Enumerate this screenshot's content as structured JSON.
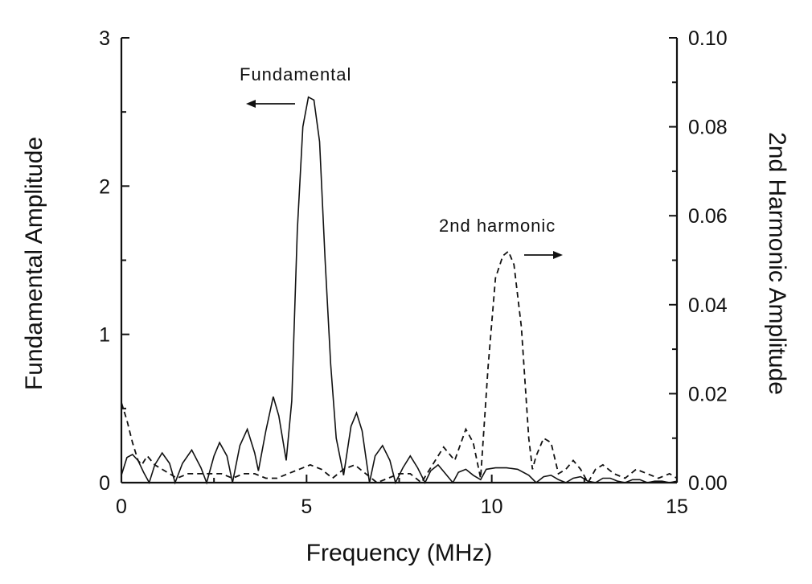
{
  "chart_data": {
    "type": "line",
    "title": "",
    "xlabel": "Frequency (MHz)",
    "ylabel_left": "Fundamental Amplitude",
    "ylabel_right": "2nd Harmonic Amplitude",
    "xlim": [
      0,
      15
    ],
    "ylim_left": [
      0,
      3
    ],
    "ylim_right": [
      0,
      0.1
    ],
    "x_ticks": [
      "0",
      "5",
      "10",
      "15"
    ],
    "y_left_ticks": [
      "0",
      "1",
      "2",
      "3"
    ],
    "y_right_ticks": [
      "0.00",
      "0.02",
      "0.04",
      "0.06",
      "0.08",
      "0.10"
    ],
    "grid": false,
    "annotations": [
      {
        "text": "Fundamental",
        "points_to": "left-axis"
      },
      {
        "text": "2nd harmonic",
        "points_to": "right-axis"
      }
    ],
    "series": [
      {
        "axis": "left",
        "style": "solid",
        "x": [
          0.0,
          0.15,
          0.3,
          0.45,
          0.6,
          0.75,
          0.9,
          1.1,
          1.3,
          1.45,
          1.65,
          1.9,
          2.15,
          2.3,
          2.5,
          2.65,
          2.85,
          3.0,
          3.2,
          3.4,
          3.6,
          3.7,
          3.9,
          4.1,
          4.25,
          4.45,
          4.6,
          4.75,
          4.9,
          5.05,
          5.2,
          5.35,
          5.5,
          5.65,
          5.8,
          6.0,
          6.2,
          6.35,
          6.5,
          6.7,
          6.85,
          7.05,
          7.25,
          7.4,
          7.6,
          7.8,
          8.0,
          8.2,
          8.35,
          8.55,
          8.75,
          8.95,
          9.1,
          9.3,
          9.5,
          9.7,
          9.85,
          10.1,
          10.4,
          10.7,
          11.0,
          11.2,
          11.4,
          11.6,
          11.8,
          12.0,
          12.2,
          12.4,
          12.6,
          12.8,
          13.0,
          13.2,
          13.4,
          13.6,
          13.8,
          14.0,
          14.2,
          14.4,
          14.6,
          14.8,
          15.0
        ],
        "y": [
          0.05,
          0.17,
          0.19,
          0.15,
          0.07,
          0.0,
          0.12,
          0.2,
          0.13,
          0.0,
          0.13,
          0.22,
          0.1,
          0.0,
          0.18,
          0.27,
          0.18,
          0.0,
          0.25,
          0.36,
          0.2,
          0.08,
          0.35,
          0.58,
          0.45,
          0.15,
          0.55,
          1.7,
          2.4,
          2.6,
          2.58,
          2.3,
          1.5,
          0.8,
          0.3,
          0.05,
          0.38,
          0.47,
          0.35,
          0.0,
          0.18,
          0.25,
          0.15,
          0.0,
          0.1,
          0.18,
          0.1,
          0.0,
          0.08,
          0.12,
          0.06,
          0.0,
          0.07,
          0.09,
          0.05,
          0.02,
          0.09,
          0.1,
          0.1,
          0.09,
          0.05,
          0.0,
          0.04,
          0.05,
          0.02,
          0.0,
          0.03,
          0.04,
          0.01,
          0.0,
          0.03,
          0.03,
          0.01,
          0.0,
          0.02,
          0.02,
          0.0,
          0.01,
          0.01,
          0.0,
          0.01
        ]
      },
      {
        "axis": "right",
        "style": "dashed",
        "x": [
          0.0,
          0.15,
          0.3,
          0.45,
          0.55,
          0.7,
          0.9,
          1.1,
          1.3,
          1.5,
          1.8,
          2.1,
          2.4,
          2.7,
          3.0,
          3.3,
          3.6,
          3.9,
          4.2,
          4.5,
          4.8,
          5.1,
          5.4,
          5.7,
          6.0,
          6.3,
          6.6,
          6.9,
          7.2,
          7.5,
          7.8,
          8.1,
          8.4,
          8.7,
          9.0,
          9.3,
          9.5,
          9.7,
          9.9,
          10.1,
          10.3,
          10.45,
          10.6,
          10.8,
          11.0,
          11.1,
          11.2,
          11.4,
          11.6,
          11.8,
          12.0,
          12.2,
          12.4,
          12.6,
          12.8,
          13.0,
          13.3,
          13.6,
          13.9,
          14.2,
          14.5,
          14.8,
          15.0
        ],
        "y": [
          0.018,
          0.014,
          0.009,
          0.005,
          0.004,
          0.006,
          0.004,
          0.003,
          0.002,
          0.001,
          0.002,
          0.002,
          0.002,
          0.002,
          0.001,
          0.002,
          0.002,
          0.001,
          0.001,
          0.002,
          0.003,
          0.004,
          0.003,
          0.001,
          0.003,
          0.004,
          0.002,
          0.0,
          0.001,
          0.002,
          0.002,
          0.0,
          0.004,
          0.008,
          0.005,
          0.012,
          0.009,
          0.001,
          0.026,
          0.046,
          0.051,
          0.052,
          0.049,
          0.035,
          0.01,
          0.003,
          0.006,
          0.01,
          0.009,
          0.002,
          0.003,
          0.005,
          0.003,
          0.0,
          0.003,
          0.004,
          0.002,
          0.001,
          0.003,
          0.002,
          0.001,
          0.002,
          0.001
        ]
      }
    ]
  }
}
